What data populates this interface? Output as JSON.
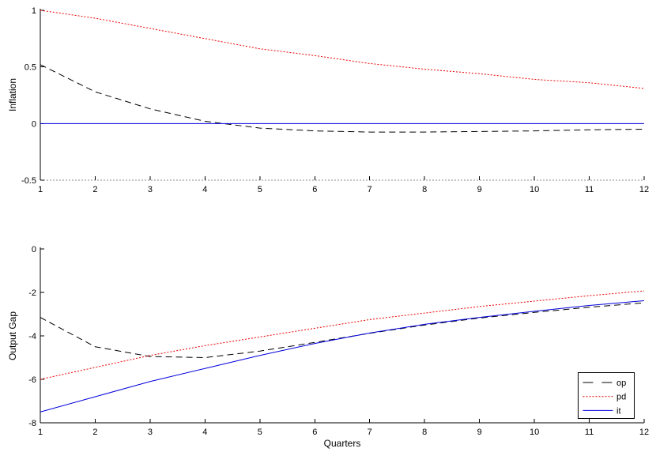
{
  "figure": {
    "background": "#ffffff",
    "axis_color": "#000000",
    "top_x_axis_color": "#888888"
  },
  "chart_data": [
    {
      "id": "inflation",
      "type": "line",
      "title": "",
      "xlabel": "",
      "ylabel": "Inflation",
      "xlim": [
        1,
        12
      ],
      "ylim": [
        -0.5,
        1
      ],
      "grid": false,
      "x": [
        1,
        2,
        3,
        4,
        5,
        6,
        7,
        8,
        9,
        10,
        11,
        12
      ],
      "xticks": [
        1,
        2,
        3,
        4,
        5,
        6,
        7,
        8,
        9,
        10,
        11,
        12
      ],
      "xtick_labels": [
        "1",
        "2",
        "3",
        "4",
        "5",
        "6",
        "7",
        "8",
        "9",
        "10",
        "11",
        "12"
      ],
      "yticks": [
        -0.5,
        0,
        0.5,
        1
      ],
      "ytick_labels": [
        "-0.5",
        "0",
        "0.5",
        "1"
      ],
      "series": [
        {
          "name": "op",
          "color": "#000000",
          "style": "dashed",
          "values": [
            0.52,
            0.28,
            0.13,
            0.02,
            -0.04,
            -0.065,
            -0.075,
            -0.075,
            -0.07,
            -0.065,
            -0.055,
            -0.05
          ]
        },
        {
          "name": "pd",
          "color": "#ee0000",
          "style": "dotted",
          "values": [
            1.0,
            0.93,
            0.84,
            0.75,
            0.66,
            0.6,
            0.53,
            0.48,
            0.44,
            0.39,
            0.36,
            0.31
          ]
        },
        {
          "name": "it",
          "color": "#0000dd",
          "style": "solid",
          "values": [
            0,
            0,
            0,
            0,
            0,
            0,
            0,
            0,
            0,
            0,
            0,
            0
          ]
        }
      ]
    },
    {
      "id": "output-gap",
      "type": "line",
      "title": "",
      "xlabel": "Quarters",
      "ylabel": "Output Gap",
      "xlim": [
        1,
        12
      ],
      "ylim": [
        -8,
        0
      ],
      "grid": false,
      "x": [
        1,
        2,
        3,
        4,
        5,
        6,
        7,
        8,
        9,
        10,
        11,
        12
      ],
      "xticks": [
        1,
        2,
        3,
        4,
        5,
        6,
        7,
        8,
        9,
        10,
        11,
        12
      ],
      "xtick_labels": [
        "1",
        "2",
        "3",
        "4",
        "5",
        "6",
        "7",
        "8",
        "9",
        "10",
        "11",
        "12"
      ],
      "yticks": [
        -8,
        -6,
        -4,
        -2,
        0
      ],
      "ytick_labels": [
        "-8",
        "-6",
        "-4",
        "-2",
        "0"
      ],
      "legend_position": "bottom-right",
      "series": [
        {
          "name": "op",
          "color": "#000000",
          "style": "dashed",
          "values": [
            -3.15,
            -4.5,
            -4.95,
            -5.0,
            -4.7,
            -4.3,
            -3.88,
            -3.5,
            -3.18,
            -2.92,
            -2.68,
            -2.48
          ]
        },
        {
          "name": "pd",
          "color": "#ee0000",
          "style": "dotted",
          "values": [
            -6.0,
            -5.45,
            -4.9,
            -4.45,
            -4.05,
            -3.65,
            -3.25,
            -2.95,
            -2.65,
            -2.4,
            -2.15,
            -1.93
          ]
        },
        {
          "name": "it",
          "color": "#0000dd",
          "style": "solid",
          "values": [
            -7.5,
            -6.8,
            -6.1,
            -5.5,
            -4.9,
            -4.35,
            -3.87,
            -3.47,
            -3.15,
            -2.87,
            -2.6,
            -2.38
          ]
        }
      ]
    }
  ]
}
